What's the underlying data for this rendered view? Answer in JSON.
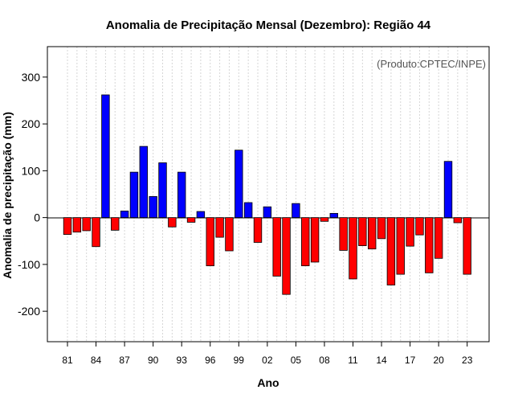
{
  "chart_data": {
    "type": "bar",
    "title": "Anomalia de Precipitação Mensal (Dezembro): Região 44",
    "xlabel": "Ano",
    "ylabel": "Anomalia de precipitação (mm)",
    "annotation": "(Produto:CPTEC/INPE)",
    "ylim": [
      -265,
      365
    ],
    "yticks": [
      -200,
      -100,
      0,
      100,
      200,
      300
    ],
    "xtick_labels": [
      "81",
      "84",
      "87",
      "90",
      "93",
      "96",
      "99",
      "02",
      "05",
      "08",
      "11",
      "14",
      "17",
      "20",
      "23"
    ],
    "categories": [
      "81",
      "82",
      "83",
      "84",
      "85",
      "86",
      "87",
      "88",
      "89",
      "90",
      "91",
      "92",
      "93",
      "94",
      "95",
      "96",
      "97",
      "98",
      "99",
      "00",
      "01",
      "02",
      "03",
      "04",
      "05",
      "06",
      "07",
      "08",
      "09",
      "10",
      "11",
      "12",
      "13",
      "14",
      "15",
      "16",
      "17",
      "18",
      "19",
      "20",
      "21",
      "22",
      "23"
    ],
    "values": [
      -36,
      -31,
      -28,
      -62,
      262,
      -27,
      14,
      97,
      152,
      45,
      117,
      -20,
      97,
      -10,
      13,
      -103,
      -42,
      -71,
      144,
      32,
      -53,
      23,
      -125,
      -164,
      30,
      -103,
      -95,
      -8,
      9,
      -70,
      -131,
      -60,
      -67,
      -45,
      -144,
      -121,
      -61,
      -37,
      -118,
      -87,
      120,
      -11,
      -121
    ],
    "colors": {
      "positive": "#0000ff",
      "negative": "#ff0000",
      "outline": "#000000"
    },
    "grid": true
  }
}
